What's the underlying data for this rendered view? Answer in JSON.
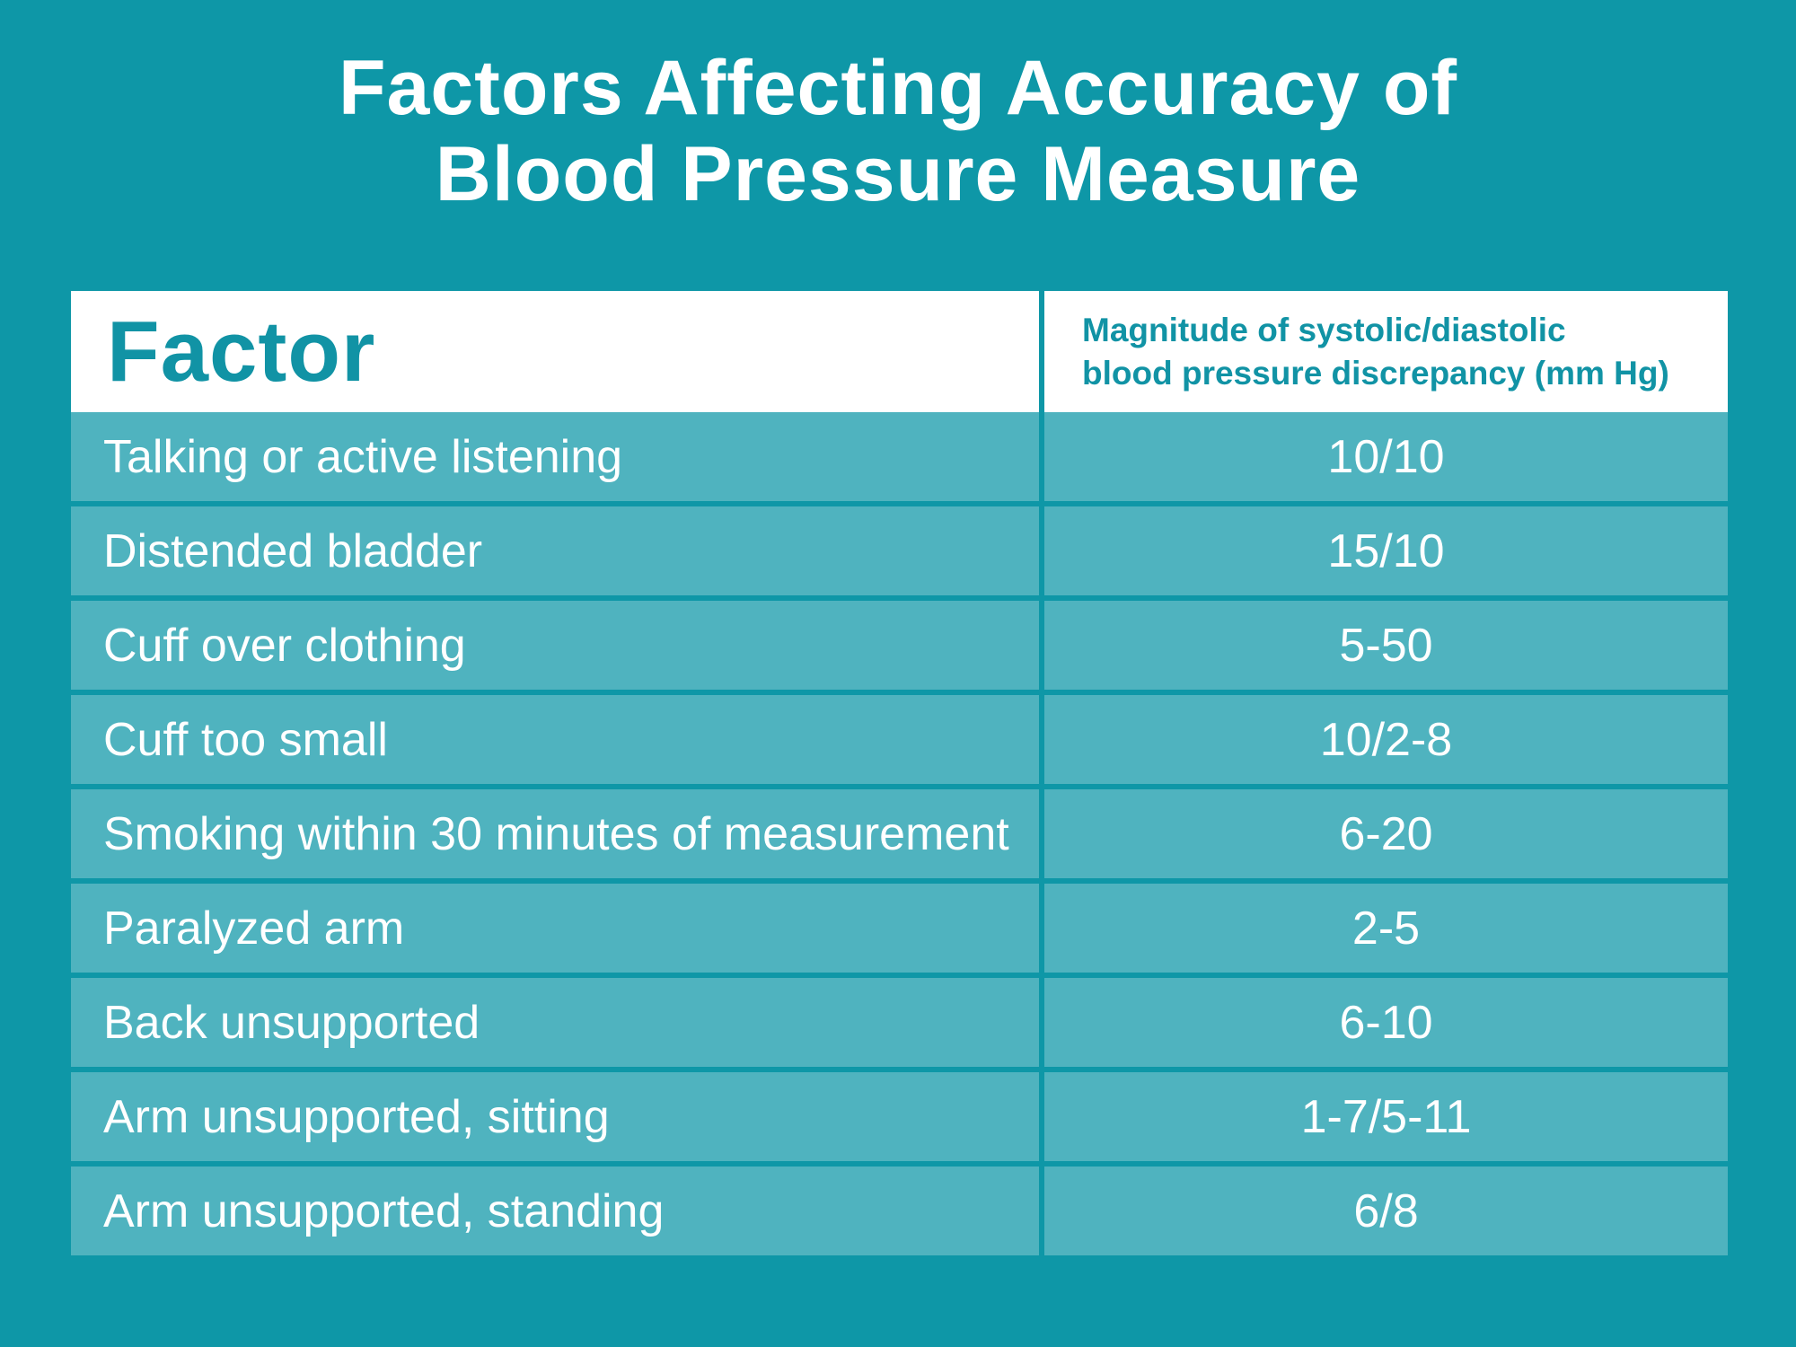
{
  "title": {
    "line1": "Factors Affecting Accuracy of",
    "line2": "Blood Pressure Measure"
  },
  "table": {
    "col1_header": "Factor",
    "col2_header_line1": "Magnitude of systolic/diastolic",
    "col2_header_line2": "blood pressure discrepancy (mm Hg)",
    "rows": [
      {
        "factor": "Talking or active listening",
        "value": "10/10"
      },
      {
        "factor": "Distended bladder",
        "value": "15/10"
      },
      {
        "factor": "Cuff over clothing",
        "value": "5-50"
      },
      {
        "factor": "Cuff too small",
        "value": "10/2-8"
      },
      {
        "factor": "Smoking within 30 minutes of measurement",
        "value": "6-20"
      },
      {
        "factor": "Paralyzed arm",
        "value": "2-5"
      },
      {
        "factor": "Back unsupported",
        "value": "6-10"
      },
      {
        "factor": "Arm unsupported, sitting",
        "value": "1-7/5-11"
      },
      {
        "factor": "Arm unsupported, standing",
        "value": "6/8"
      }
    ]
  },
  "colors": {
    "background_teal": "#0e97a7",
    "row_teal": "#4fb3bf",
    "header_background": "#ffffff",
    "header_text_teal": "#1193a5",
    "body_text": "#ffffff"
  },
  "chart_data": {
    "type": "table",
    "title": "Factors Affecting Accuracy of Blood Pressure Measure",
    "columns": [
      "Factor",
      "Magnitude of systolic/diastolic blood pressure discrepancy (mm Hg)"
    ],
    "rows": [
      [
        "Talking or active listening",
        "10/10"
      ],
      [
        "Distended bladder",
        "15/10"
      ],
      [
        "Cuff over clothing",
        "5-50"
      ],
      [
        "Cuff too small",
        "10/2-8"
      ],
      [
        "Smoking within 30 minutes of measurement",
        "6-20"
      ],
      [
        "Paralyzed arm",
        "2-5"
      ],
      [
        "Back unsupported",
        "6-10"
      ],
      [
        "Arm unsupported, sitting",
        "1-7/5-11"
      ],
      [
        "Arm unsupported, standing",
        "6/8"
      ]
    ]
  }
}
